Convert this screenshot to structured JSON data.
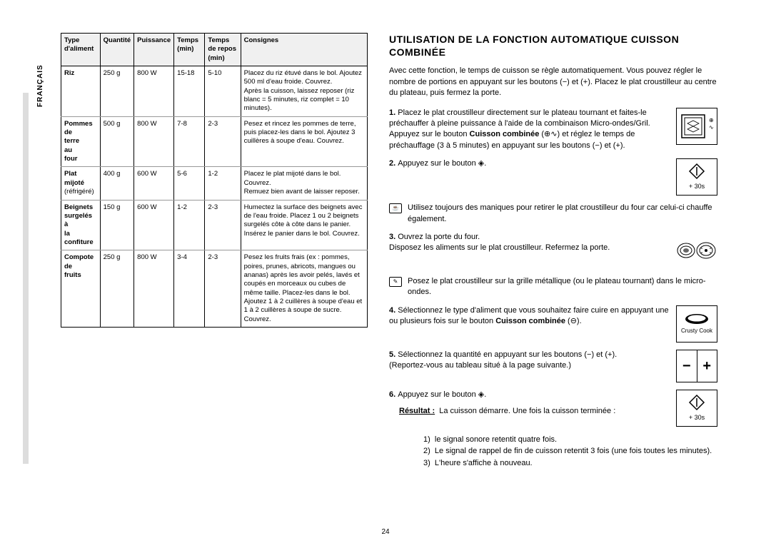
{
  "lang_tab": "FRANÇAIS",
  "page_number": "24",
  "table": {
    "headers": [
      "Type d'aliment",
      "Quantité",
      "Puissance",
      "Temps (min)",
      "Temps de repos (min)",
      "Consignes"
    ],
    "rows": [
      {
        "food": "Riz",
        "qty": "250 g",
        "power": "800 W",
        "time": "15-18",
        "rest": "5-10",
        "instr": "Placez du riz étuvé dans le bol. Ajoutez 500 ml d'eau froide. Couvrez.\nAprès la cuisson, laissez reposer (riz blanc = 5 minutes, riz complet = 10 minutes)."
      },
      {
        "food": "Pommes de terre au four",
        "qty": "500 g",
        "power": "800 W",
        "time": "7-8",
        "rest": "2-3",
        "instr": "Pesez et rincez les pommes de terre, puis placez-les dans le bol. Ajoutez 3 cuillères à soupe d'eau. Couvrez."
      },
      {
        "food": "Plat mijoté",
        "food_sub": "(réfrigéré)",
        "qty": "400 g",
        "power": "600 W",
        "time": "5-6",
        "rest": "1-2",
        "instr": "Placez le plat mijoté dans le bol. Couvrez.\nRemuez bien avant de laisser reposer."
      },
      {
        "food": "Beignets surgelés à la confiture",
        "qty": "150 g",
        "power": "600 W",
        "time": "1-2",
        "rest": "2-3",
        "instr": "Humectez la surface des beignets avec de l'eau froide. Placez 1 ou 2 beignets surgelés côte à côte dans le panier. Insérez le panier dans le bol. Couvrez."
      },
      {
        "food": "Compote de fruits",
        "qty": "250 g",
        "power": "800 W",
        "time": "3-4",
        "rest": "2-3",
        "instr": "Pesez les fruits frais (ex : pommes, poires, prunes, abricots, mangues ou ananas) après les avoir pelés, lavés et coupés en morceaux ou cubes de même taille. Placez-les dans le bol.\nAjoutez 1 à 2 cuillères à soupe d'eau et 1 à 2 cuillères à soupe de sucre. Couvrez."
      }
    ]
  },
  "right": {
    "title": "UTILISATION DE LA FONCTION AUTOMATIQUE CUISSON COMBINÉE",
    "intro": "Avec cette fonction, le temps de cuisson se règle automatiquement. Vous pouvez régler le nombre de portions en appuyant sur les boutons (−) et (+). Placez le plat croustilleur au centre du plateau, puis fermez la porte.",
    "step1": "Placez le plat croustilleur directement sur le plateau tournant et faites-le préchauffer à pleine puissance à l'aide de la combinaison Micro-ondes/Gril. Appuyez sur le bouton <b>Cuisson combinée</b> (⊕∿) et réglez le temps de préchauffage (3 à 5 minutes) en appuyant sur les boutons (−) et (+).",
    "step2": "Appuyez sur le bouton ◈.",
    "note1": "Utilisez toujours des maniques pour retirer le plat croustilleur du four car celui-ci chauffe également.",
    "step3a": "Ouvrez la porte du four.",
    "step3b": "Disposez les aliments sur le plat croustilleur. Refermez la porte.",
    "note2": "Posez le plat croustilleur sur la grille métallique (ou le plateau tournant) dans le micro-ondes.",
    "step4": "Sélectionnez le type d'aliment que vous souhaitez faire cuire en appuyant une ou plusieurs fois sur le bouton <b>Cuisson combinée</b> (⊖).",
    "step5a": "Sélectionnez la quantité en appuyant sur les boutons (−) et (+).",
    "step5b": "(Reportez-vous au tableau situé à la page suivante.)",
    "step6": "Appuyez sur le bouton ◈.",
    "result_label": "Résultat :",
    "result_text": "La cuisson démarre. Une fois la cuisson terminée :",
    "r1": "le signal sonore retentit quatre fois.",
    "r2": "Le signal de rappel de fin de cuisson retentit 3 fois (une fois toutes les minutes).",
    "r3": "L'heure s'affiche à nouveau.",
    "crusty": "Crusty Cook",
    "plus30": "+ 30s"
  }
}
